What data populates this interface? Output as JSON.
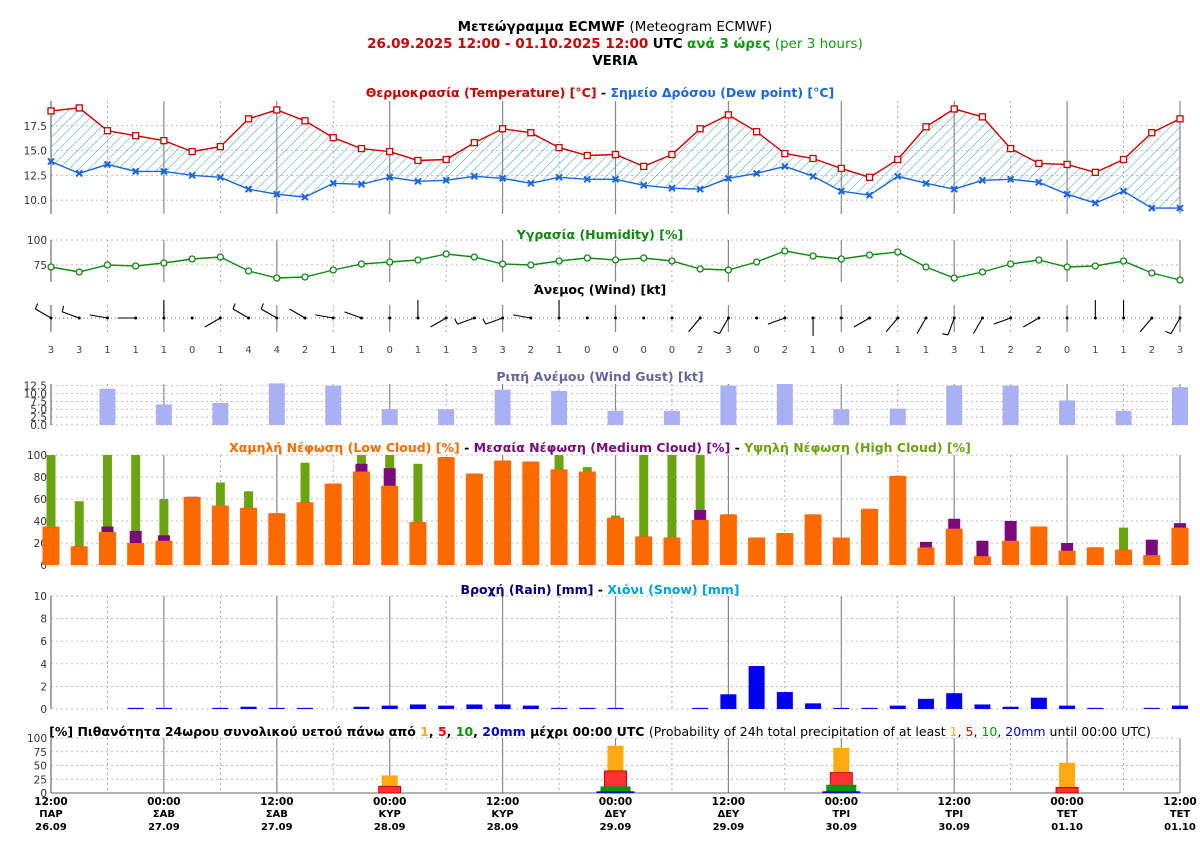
{
  "header": {
    "title_bold": "Μετεώγραμμα ECMWF",
    "title_normal": "(Meteogram ECMWF)",
    "range": "26.09.2025 12:00 - 01.10.2025 12:00",
    "utc": "UTC",
    "step_bold": "ανά 3 ώρες",
    "step_normal": "(per 3 hours)",
    "location": "VERIA"
  },
  "colors": {
    "temperature": "#cc0000",
    "dewpoint": "#1a66dd",
    "humidity": "#118811",
    "gust": "#aab0f4",
    "gust_title": "#666699",
    "low_cloud": "#ff6a00",
    "medium_cloud": "#7a0a7a",
    "high_cloud": "#6aa511",
    "rain": "#0000ee",
    "rain_title": "#000080",
    "snow": "#00a0dd",
    "p1": "#ffaa11",
    "p5": "#ee0000",
    "p10": "#009900",
    "p20": "#0000cc",
    "hatch": "#44aabb"
  },
  "x_ticks": [
    {
      "time": "12:00",
      "day": "ΠΑΡ",
      "date": "26.09"
    },
    {
      "time": "00:00",
      "day": "ΣΑΒ",
      "date": "27.09"
    },
    {
      "time": "12:00",
      "day": "ΣΑΒ",
      "date": "27.09"
    },
    {
      "time": "00:00",
      "day": "ΚΥΡ",
      "date": "28.09"
    },
    {
      "time": "12:00",
      "day": "ΚΥΡ",
      "date": "28.09"
    },
    {
      "time": "00:00",
      "day": "ΔΕΥ",
      "date": "29.09"
    },
    {
      "time": "12:00",
      "day": "ΔΕΥ",
      "date": "29.09"
    },
    {
      "time": "00:00",
      "day": "ΤΡΙ",
      "date": "30.09"
    },
    {
      "time": "12:00",
      "day": "ΤΡΙ",
      "date": "30.09"
    },
    {
      "time": "00:00",
      "day": "ΤΕΤ",
      "date": "01.10"
    },
    {
      "time": "12:00",
      "day": "ΤΕΤ",
      "date": "01.10"
    }
  ],
  "chart_data": [
    {
      "type": "line",
      "title_a": "Θερμοκρασία (Temperature) [°C]",
      "title_b": "Σημείο Δρόσου (Dew point) [°C]",
      "y_ticks": [
        "17.5",
        "15.0",
        "12.5",
        "10.0"
      ],
      "ylim": [
        8.6,
        20.0
      ],
      "series": [
        {
          "name": "Temperature",
          "values": [
            19.0,
            19.3,
            17.0,
            16.5,
            16.0,
            14.9,
            15.4,
            18.2,
            19.1,
            18.0,
            16.3,
            15.2,
            14.9,
            14.0,
            14.1,
            15.8,
            17.2,
            16.8,
            15.3,
            14.5,
            14.6,
            13.4,
            14.6,
            17.2,
            18.6,
            16.9,
            14.7,
            14.2,
            13.2,
            12.3,
            14.1,
            17.4,
            19.2,
            18.4,
            15.2,
            13.7,
            13.6,
            12.8,
            14.1,
            16.8,
            18.2
          ]
        },
        {
          "name": "Dew point",
          "values": [
            13.9,
            12.7,
            13.6,
            12.9,
            12.9,
            12.5,
            12.3,
            11.1,
            10.6,
            10.3,
            11.7,
            11.6,
            12.3,
            11.9,
            12.0,
            12.4,
            12.2,
            11.7,
            12.3,
            12.1,
            12.1,
            11.5,
            11.2,
            11.1,
            12.2,
            12.7,
            13.4,
            12.4,
            10.9,
            10.5,
            12.4,
            11.7,
            11.1,
            12.0,
            12.1,
            11.8,
            10.6,
            9.7,
            10.9,
            9.2,
            9.2
          ]
        }
      ]
    },
    {
      "type": "line",
      "title": "Υγρασία (Humidity) [%]",
      "y_ticks": [
        "100",
        "75"
      ],
      "ylim": [
        58,
        100
      ],
      "series": [
        {
          "name": "Humidity",
          "values": [
            73,
            68,
            75,
            74,
            77,
            81,
            83,
            69,
            62,
            63,
            70,
            76,
            78,
            80,
            86,
            83,
            76,
            75,
            79,
            82,
            80,
            82,
            79,
            71,
            70,
            78,
            89,
            84,
            81,
            85,
            88,
            73,
            62,
            68,
            76,
            80,
            73,
            74,
            79,
            67,
            60
          ]
        }
      ]
    },
    {
      "type": "table",
      "title": "Άνεμος (Wind) [kt]",
      "speeds": [
        "3",
        "3",
        "1",
        "1",
        "1",
        "0",
        "1",
        "4",
        "4",
        "2",
        "1",
        "1",
        "0",
        "1",
        "1",
        "3",
        "3",
        "2",
        "1",
        "0",
        "0",
        "0",
        "0",
        "2",
        "3",
        "0",
        "2",
        "1",
        "0",
        "1",
        "1",
        "1",
        "3",
        "1",
        "2",
        "2",
        "0",
        "1",
        "1",
        "2",
        "3"
      ],
      "directions_deg": [
        300,
        290,
        280,
        270,
        0,
        0,
        240,
        300,
        300,
        300,
        280,
        290,
        0,
        0,
        240,
        250,
        250,
        280,
        0,
        0,
        0,
        0,
        0,
        220,
        210,
        0,
        250,
        180,
        0,
        240,
        220,
        210,
        200,
        210,
        250,
        240,
        0,
        0,
        0,
        220,
        210
      ]
    },
    {
      "type": "bar",
      "title": "Ριπή Ανέμου (Wind Gust) [kt]",
      "y_ticks": [
        "12.5",
        "10.0",
        "7.5",
        "5.0",
        "2.5",
        "0.0"
      ],
      "ylim": [
        0,
        13
      ],
      "values": [
        11.5,
        6.5,
        7.0,
        13.2,
        12.5,
        5.0,
        5.0,
        11.2,
        10.8,
        4.5,
        4.5,
        12.5,
        13.0,
        5.0,
        5.2,
        12.5,
        12.5,
        7.8,
        4.5,
        12.0
      ]
    },
    {
      "type": "bar",
      "title_a": "Χαμηλή Νέφωση (Low Cloud) [%]",
      "title_b": "Μεσαία Νέφωση (Medium Cloud) [%]",
      "title_c": "Υψηλή Νέφωση (High Cloud) [%]",
      "y_ticks": [
        "100",
        "80",
        "60",
        "40",
        "20",
        "0"
      ],
      "ylim": [
        0,
        100
      ],
      "series": [
        {
          "name": "Low Cloud",
          "values": [
            35,
            17,
            30,
            20,
            22,
            62,
            54,
            52,
            47,
            57,
            74,
            85,
            72,
            39,
            98,
            83,
            95,
            94,
            87,
            85,
            43,
            26,
            25,
            41,
            46,
            25,
            29,
            46,
            25,
            51,
            81,
            16,
            33,
            8,
            22,
            35,
            13,
            16,
            14,
            9,
            34
          ]
        },
        {
          "name": "Medium Cloud",
          "values": [
            35,
            17,
            35,
            31,
            27,
            62,
            54,
            52,
            47,
            57,
            74,
            92,
            88,
            39,
            98,
            83,
            95,
            94,
            87,
            85,
            43,
            26,
            25,
            50,
            46,
            25,
            29,
            46,
            25,
            51,
            81,
            21,
            42,
            22,
            40,
            35,
            20,
            16,
            14,
            23,
            38
          ]
        },
        {
          "name": "High Cloud",
          "values": [
            100,
            58,
            100,
            100,
            60,
            62,
            75,
            67,
            47,
            93,
            74,
            100,
            100,
            92,
            98,
            83,
            95,
            94,
            100,
            89,
            45,
            100,
            100,
            100,
            46,
            25,
            29,
            46,
            25,
            51,
            81,
            21,
            42,
            22,
            40,
            35,
            20,
            16,
            34,
            23,
            38
          ]
        }
      ]
    },
    {
      "type": "bar",
      "title_a": "Βροχή (Rain) [mm]",
      "title_b": "Χιόνι (Snow) [mm]",
      "y_ticks": [
        "10",
        "8",
        "6",
        "4",
        "2",
        "0"
      ],
      "ylim": [
        0,
        10
      ],
      "series": [
        {
          "name": "Rain",
          "values": [
            0,
            0,
            0,
            0.1,
            0.1,
            0,
            0.1,
            0.2,
            0.1,
            0.1,
            0,
            0.2,
            0.3,
            0.4,
            0.3,
            0.4,
            0.4,
            0.3,
            0.1,
            0.1,
            0.1,
            0,
            0,
            0.1,
            1.3,
            3.8,
            1.5,
            0.5,
            0.1,
            0.1,
            0.3,
            0.9,
            1.4,
            0.4,
            0.2,
            1.0,
            0.3,
            0.1,
            0,
            0.1,
            0.3
          ]
        },
        {
          "name": "Snow",
          "values": [
            0,
            0,
            0,
            0,
            0,
            0,
            0,
            0,
            0,
            0,
            0,
            0,
            0,
            0,
            0,
            0,
            0,
            0,
            0,
            0,
            0,
            0,
            0,
            0,
            0,
            0,
            0,
            0,
            0,
            0,
            0,
            0,
            0,
            0,
            0,
            0,
            0,
            0,
            0,
            0,
            0
          ]
        }
      ]
    },
    {
      "type": "bar",
      "title_prefix": "[%] Πιθανότητα 24ωρου συνολικού υετού πάνω από",
      "title_mid": "μέχρι 00:00 UTC",
      "title_en_prefix": "(Probability of 24h total precipitation of at least",
      "title_en_suffix": "until 00:00 UTC)",
      "thresholds": [
        "1",
        "5",
        "10",
        "20mm"
      ],
      "thresholds_en": [
        "1",
        "5",
        "10",
        "20mm"
      ],
      "sep": ", ",
      "y_ticks": [
        "100",
        "75",
        "50",
        "25",
        "0"
      ],
      "ylim": [
        0,
        100
      ],
      "categories": [
        "28.09",
        "29.09",
        "30.09",
        "01.10"
      ],
      "series": [
        {
          "name": "1mm",
          "values": [
            32,
            86,
            82,
            55
          ]
        },
        {
          "name": "5mm",
          "values": [
            12,
            40,
            37,
            10
          ]
        },
        {
          "name": "10mm",
          "values": [
            0,
            12,
            15,
            0
          ]
        },
        {
          "name": "20mm",
          "values": [
            0,
            3,
            3,
            0
          ]
        }
      ]
    }
  ]
}
